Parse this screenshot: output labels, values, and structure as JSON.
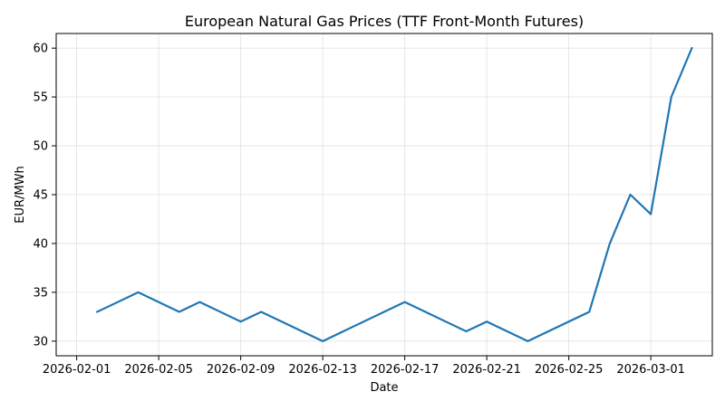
{
  "chart_data": {
    "type": "line",
    "title": "European Natural Gas Prices (TTF Front-Month Futures)",
    "xlabel": "Date",
    "ylabel": "EUR/MWh",
    "xlim": [
      "2026-01-31",
      "2026-03-04"
    ],
    "ylim": [
      28.5,
      61.5
    ],
    "x_ticks": [
      "2026-02-01",
      "2026-02-05",
      "2026-02-09",
      "2026-02-13",
      "2026-02-17",
      "2026-02-21",
      "2026-02-25",
      "2026-03-01"
    ],
    "y_ticks": [
      30,
      35,
      40,
      45,
      50,
      55,
      60
    ],
    "grid": true,
    "line_color": "#1f77b4",
    "series": [
      {
        "x": [
          "2026-02-02",
          "2026-02-04",
          "2026-02-06",
          "2026-02-07",
          "2026-02-09",
          "2026-02-10",
          "2026-02-13",
          "2026-02-17",
          "2026-02-20",
          "2026-02-21",
          "2026-02-23",
          "2026-02-26",
          "2026-02-27",
          "2026-02-28",
          "2026-03-01",
          "2026-03-02",
          "2026-03-03"
        ],
        "values": [
          33,
          35,
          33,
          34,
          32,
          33,
          30,
          34,
          31,
          32,
          30,
          33,
          40,
          45,
          43,
          55,
          60
        ]
      }
    ]
  }
}
